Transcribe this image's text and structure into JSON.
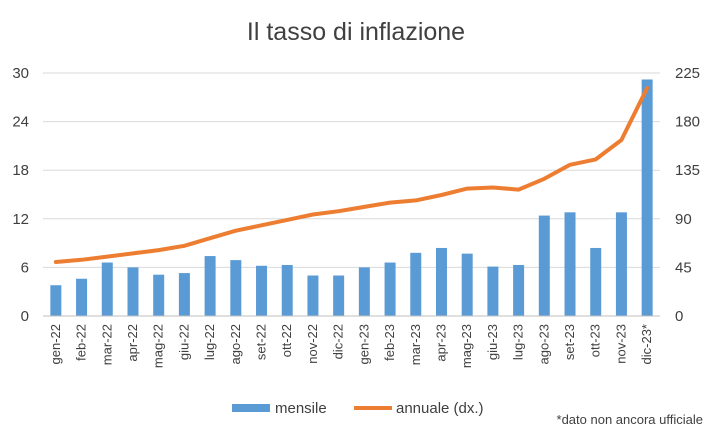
{
  "chart_data": {
    "type": "bar",
    "title": "Il tasso di inflazione",
    "categories": [
      "gen-22",
      "feb-22",
      "mar-22",
      "apr-22",
      "mag-22",
      "giu-22",
      "lug-22",
      "ago-22",
      "set-22",
      "ott-22",
      "nov-22",
      "dic-22",
      "gen-23",
      "feb-23",
      "mar-23",
      "apr-23",
      "mag-23",
      "giu-23",
      "lug-23",
      "ago-23",
      "set-23",
      "ott-23",
      "nov-23",
      "dic-23*"
    ],
    "series": [
      {
        "name": "mensile",
        "type": "bar",
        "axis": "left",
        "color": "#5b9bd5",
        "values": [
          3.8,
          4.6,
          6.6,
          6.0,
          5.1,
          5.3,
          7.4,
          6.9,
          6.2,
          6.3,
          5.0,
          5.0,
          6.0,
          6.6,
          7.8,
          8.4,
          7.7,
          6.1,
          6.3,
          12.4,
          12.8,
          8.4,
          12.8,
          29.2
        ]
      },
      {
        "name": "annuale (dx.)",
        "type": "line",
        "axis": "right",
        "color": "#ed7d31",
        "values": [
          50,
          52,
          55,
          58,
          61,
          65,
          72,
          79,
          84,
          89,
          94,
          97,
          101,
          105,
          107,
          112,
          118,
          119,
          117,
          127,
          140,
          145,
          163,
          211
        ]
      }
    ],
    "y_left": {
      "ylim": [
        0,
        30
      ],
      "ticks": [
        "0",
        "6",
        "12",
        "18",
        "24",
        "30"
      ]
    },
    "y_right": {
      "ylim": [
        0,
        225
      ],
      "ticks": [
        "0",
        "45",
        "90",
        "135",
        "180",
        "225"
      ]
    },
    "grid": true,
    "legend_position": "bottom",
    "footnote": "*dato non ancora ufficiale"
  }
}
